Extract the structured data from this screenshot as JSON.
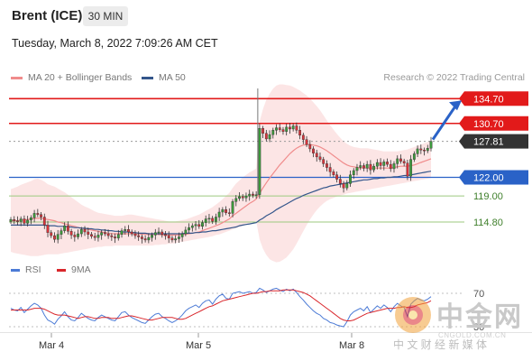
{
  "header": {
    "symbol": "Brent (ICE)",
    "interval": "30 MIN",
    "datetime": "Tuesday, March 8, 2022 7:09:26 AM CET"
  },
  "legend": {
    "ma20_label": "MA 20 + Bollinger Bands",
    "ma50_label": "MA 50",
    "credit": "Research © 2022 Trading Central"
  },
  "rsi_legend": {
    "rsi_label": "RSI",
    "ma9_label": "9MA"
  },
  "watermark": {
    "text": "中金网",
    "domain": "CNGOLD.COM.CN",
    "tagline": "中 文 财 经 新 媒 体"
  },
  "colors": {
    "ma20": "#f08c8c",
    "ma50": "#34568b",
    "resistance": "#e21a1a",
    "pivot": "#2a62c7",
    "support": "#9cc97f",
    "bollinger_fill": "#fbe0e0",
    "candle_up": "#3c9a3c",
    "candle_down": "#d8333a",
    "rsi": "#4c7bd6",
    "rsi_ma": "#d9262b",
    "current_price_bg": "#333333"
  },
  "chart_data": [
    {
      "type": "candlestick",
      "title": "Brent (ICE)",
      "interval": "30 MIN",
      "x_ticks": [
        "Mar 4",
        "Mar 5",
        "Mar 8"
      ],
      "price_levels": [
        {
          "name": "resistance",
          "value": 134.7,
          "label": "134.70",
          "style": "red"
        },
        {
          "name": "resistance",
          "value": 130.7,
          "label": "130.70",
          "style": "red"
        },
        {
          "name": "current",
          "value": 127.81,
          "label": "127.81",
          "style": "dark"
        },
        {
          "name": "pivot",
          "value": 122.0,
          "label": "122.00",
          "style": "blue"
        },
        {
          "name": "support",
          "value": 119.0,
          "label": "119.00",
          "style": "green"
        },
        {
          "name": "support",
          "value": 114.8,
          "label": "114.80",
          "style": "green"
        }
      ],
      "ylim": [
        106,
        140
      ],
      "series": [
        {
          "name": "MA 20 + Bollinger Bands"
        },
        {
          "name": "MA 50"
        }
      ],
      "close": [
        115.2,
        115.0,
        114.9,
        115.3,
        114.6,
        115.1,
        115.5,
        116.2,
        116.0,
        115.6,
        114.3,
        113.1,
        112.6,
        112.0,
        112.8,
        113.4,
        114.2,
        113.3,
        112.7,
        112.4,
        112.9,
        113.6,
        113.2,
        112.8,
        112.5,
        112.3,
        112.7,
        113.1,
        112.9,
        112.6,
        112.4,
        112.2,
        112.8,
        113.4,
        113.6,
        113.2,
        112.9,
        112.6,
        112.4,
        112.1,
        111.9,
        112.3,
        112.7,
        113.1,
        113.2,
        112.8,
        112.6,
        112.2,
        111.9,
        112.1,
        112.4,
        112.9,
        113.5,
        113.9,
        114.2,
        114.4,
        114.1,
        114.7,
        115.3,
        115.4,
        114.9,
        115.6,
        116.4,
        116.8,
        116.3,
        116.2,
        118.1,
        118.6,
        118.9,
        118.7,
        119.0,
        119.3,
        119.1,
        119.2,
        129.9,
        129.1,
        128.2,
        128.9,
        129.6,
        130.0,
        129.7,
        129.4,
        130.1,
        129.8,
        130.3,
        129.6,
        128.8,
        128.1,
        127.3,
        126.6,
        125.9,
        125.3,
        124.9,
        124.2,
        123.6,
        122.9,
        122.4,
        121.7,
        121.0,
        120.3,
        121.0,
        122.4,
        123.1,
        123.6,
        123.9,
        123.5,
        124.1,
        123.2,
        123.8,
        124.4,
        123.9,
        124.5,
        124.1,
        123.4,
        124.2,
        125.0,
        124.6,
        124.3,
        122.2,
        124.9,
        125.8,
        126.6,
        126.4,
        126.3,
        126.7,
        127.81
      ],
      "bb_upper": [
        120.1,
        120.3,
        120.5,
        120.8,
        121.0,
        121.2,
        121.4,
        121.7,
        121.8,
        121.6,
        121.3,
        120.9,
        120.7,
        120.5,
        120.2,
        119.9,
        119.6,
        119.2,
        118.8,
        118.4,
        118.0,
        117.6,
        117.3,
        117.1,
        116.8,
        116.5,
        116.3,
        116.2,
        116.1,
        116.0,
        115.9,
        115.8,
        115.8,
        115.8,
        115.9,
        116.0,
        116.0,
        115.9,
        115.8,
        115.7,
        115.6,
        115.5,
        115.4,
        115.3,
        115.2,
        115.1,
        115.0,
        114.9,
        114.9,
        114.9,
        115.0,
        115.1,
        115.2,
        115.4,
        115.6,
        115.8,
        116.0,
        116.3,
        116.6,
        116.9,
        117.2,
        117.6,
        118.0,
        118.5,
        119.0,
        119.5,
        120.3,
        121.0,
        121.5,
        122.0,
        122.4,
        122.8,
        123.1,
        123.4,
        131.0,
        133.0,
        134.5,
        135.5,
        136.3,
        136.8,
        137.0,
        137.0,
        136.9,
        136.8,
        136.6,
        136.3,
        136.0,
        135.6,
        135.2,
        134.7,
        134.1,
        133.5,
        132.8,
        132.0,
        131.2,
        130.4,
        129.7,
        129.0,
        128.4,
        127.8,
        127.4,
        127.1,
        126.9,
        126.8,
        126.7,
        126.7,
        126.7,
        126.6,
        126.5,
        126.4,
        126.3,
        126.2,
        126.2,
        126.2,
        126.2,
        126.2,
        126.3,
        126.4,
        126.5,
        126.7,
        126.9,
        127.1,
        127.3,
        127.5,
        127.7,
        127.9
      ],
      "bb_lower": [
        110.0,
        109.8,
        109.7,
        109.6,
        109.5,
        109.4,
        109.3,
        109.3,
        109.3,
        109.4,
        109.5,
        109.6,
        109.6,
        109.6,
        109.6,
        109.7,
        109.8,
        109.9,
        110.0,
        110.1,
        110.2,
        110.3,
        110.4,
        110.5,
        110.6,
        110.7,
        110.8,
        110.8,
        110.9,
        110.9,
        110.9,
        111.0,
        111.0,
        111.0,
        111.0,
        111.0,
        111.0,
        111.0,
        111.0,
        111.0,
        111.0,
        111.0,
        111.0,
        111.1,
        111.1,
        111.2,
        111.2,
        111.3,
        111.3,
        111.4,
        111.5,
        111.6,
        111.7,
        111.8,
        111.9,
        112.0,
        112.1,
        112.2,
        112.3,
        112.4,
        112.5,
        112.7,
        112.8,
        113.0,
        113.2,
        113.4,
        113.6,
        113.8,
        114.0,
        114.2,
        114.4,
        114.6,
        114.8,
        115.0,
        112.0,
        110.5,
        109.5,
        108.8,
        108.5,
        108.3,
        108.4,
        108.7,
        109.1,
        109.7,
        110.4,
        111.3,
        112.3,
        113.3,
        114.3,
        115.2,
        116.0,
        116.7,
        117.3,
        117.8,
        118.2,
        118.5,
        118.7,
        118.9,
        119.1,
        119.2,
        119.4,
        119.5,
        119.6,
        119.7,
        119.8,
        119.9,
        120.0,
        120.1,
        120.2,
        120.3,
        120.4,
        120.5,
        120.6,
        120.7,
        120.8,
        120.9,
        121.0,
        121.1,
        121.2,
        121.3,
        121.4,
        121.5,
        121.6,
        121.7,
        121.8,
        121.9
      ],
      "ma20": [
        115.0,
        115.0,
        115.0,
        115.1,
        115.1,
        115.2,
        115.3,
        115.4,
        115.4,
        115.4,
        115.3,
        115.2,
        115.1,
        115.0,
        114.8,
        114.7,
        114.5,
        114.4,
        114.2,
        114.1,
        113.9,
        113.8,
        113.7,
        113.6,
        113.5,
        113.4,
        113.3,
        113.2,
        113.1,
        113.0,
        112.9,
        112.9,
        112.9,
        112.9,
        112.9,
        112.9,
        112.9,
        112.9,
        112.8,
        112.8,
        112.8,
        112.8,
        112.8,
        112.8,
        112.8,
        112.7,
        112.7,
        112.7,
        112.7,
        112.7,
        112.7,
        112.8,
        112.8,
        112.9,
        113.0,
        113.1,
        113.2,
        113.4,
        113.6,
        113.8,
        114.0,
        114.2,
        114.4,
        114.7,
        115.0,
        115.3,
        115.8,
        116.2,
        116.6,
        117.0,
        117.4,
        117.8,
        118.1,
        118.5,
        119.4,
        120.3,
        121.1,
        121.9,
        122.6,
        123.3,
        124.0,
        124.6,
        125.2,
        125.8,
        126.3,
        126.7,
        127.0,
        127.2,
        127.3,
        127.3,
        127.2,
        127.1,
        126.9,
        126.6,
        126.3,
        125.9,
        125.5,
        125.1,
        124.7,
        124.3,
        124.0,
        123.8,
        123.7,
        123.6,
        123.5,
        123.5,
        123.5,
        123.5,
        123.5,
        123.5,
        123.5,
        123.5,
        123.5,
        123.5,
        123.6,
        123.7,
        123.8,
        123.8,
        123.8,
        123.9,
        124.0,
        124.2,
        124.4,
        124.6,
        124.8,
        125.0
      ],
      "ma50": [
        114.3,
        114.3,
        114.3,
        114.3,
        114.3,
        114.3,
        114.3,
        114.3,
        114.3,
        114.3,
        114.3,
        114.2,
        114.2,
        114.2,
        114.1,
        114.1,
        114.1,
        114.0,
        114.0,
        113.9,
        113.9,
        113.8,
        113.8,
        113.7,
        113.7,
        113.6,
        113.6,
        113.5,
        113.5,
        113.4,
        113.4,
        113.3,
        113.3,
        113.2,
        113.2,
        113.2,
        113.1,
        113.1,
        113.0,
        113.0,
        113.0,
        112.9,
        112.9,
        112.9,
        112.9,
        112.9,
        112.9,
        112.9,
        112.9,
        112.9,
        112.9,
        112.9,
        113.0,
        113.0,
        113.0,
        113.1,
        113.1,
        113.2,
        113.2,
        113.3,
        113.4,
        113.4,
        113.5,
        113.6,
        113.7,
        113.8,
        113.9,
        114.0,
        114.2,
        114.3,
        114.4,
        114.5,
        114.6,
        114.7,
        115.1,
        115.4,
        115.8,
        116.1,
        116.4,
        116.8,
        117.1,
        117.4,
        117.7,
        118.0,
        118.3,
        118.6,
        118.8,
        119.1,
        119.3,
        119.5,
        119.7,
        119.9,
        120.1,
        120.3,
        120.4,
        120.6,
        120.7,
        120.8,
        120.9,
        121.0,
        121.1,
        121.2,
        121.3,
        121.4,
        121.5,
        121.6,
        121.6,
        121.7,
        121.8,
        121.8,
        121.9,
        121.9,
        122.0,
        122.0,
        122.1,
        122.1,
        122.2,
        122.3,
        122.3,
        122.4,
        122.5,
        122.6,
        122.7,
        122.8,
        122.9,
        123.0
      ],
      "projection": {
        "from": 127.81,
        "to": 134.7
      }
    },
    {
      "type": "line",
      "title": "RSI",
      "ylim": [
        20,
        80
      ],
      "levels": [
        {
          "value": 70,
          "label": "70"
        },
        {
          "value": 30,
          "label": "30"
        }
      ],
      "series": [
        {
          "name": "RSI",
          "values": [
            52,
            50,
            49,
            53,
            47,
            51,
            55,
            58,
            56,
            52,
            44,
            38,
            36,
            33,
            39,
            43,
            48,
            42,
            38,
            37,
            41,
            46,
            43,
            40,
            38,
            37,
            41,
            44,
            42,
            40,
            38,
            37,
            42,
            47,
            48,
            44,
            41,
            39,
            37,
            35,
            34,
            38,
            42,
            45,
            46,
            42,
            40,
            37,
            35,
            37,
            40,
            44,
            49,
            52,
            54,
            56,
            53,
            58,
            61,
            62,
            57,
            63,
            67,
            69,
            64,
            63,
            70,
            71,
            72,
            70,
            71,
            72,
            70,
            71,
            76,
            74,
            71,
            73,
            75,
            76,
            74,
            72,
            75,
            73,
            75,
            71,
            66,
            62,
            57,
            53,
            49,
            46,
            44,
            40,
            38,
            35,
            34,
            32,
            31,
            30,
            36,
            44,
            48,
            50,
            52,
            49,
            54,
            47,
            51,
            55,
            52,
            56,
            53,
            48,
            54,
            58,
            55,
            53,
            42,
            57,
            61,
            64,
            62,
            61,
            63,
            66
          ]
        },
        {
          "name": "9MA",
          "values": [
            50,
            50,
            50,
            50,
            50,
            50,
            51,
            52,
            52,
            52,
            51,
            49,
            47,
            45,
            44,
            44,
            44,
            43,
            42,
            41,
            40,
            41,
            42,
            42,
            41,
            40,
            40,
            41,
            41,
            41,
            40,
            40,
            40,
            41,
            42,
            43,
            43,
            42,
            41,
            40,
            39,
            38,
            38,
            39,
            40,
            41,
            41,
            41,
            41,
            40,
            39,
            39,
            40,
            42,
            44,
            46,
            48,
            50,
            52,
            54,
            55,
            57,
            59,
            61,
            62,
            63,
            64,
            65,
            66,
            67,
            68,
            69,
            70,
            70,
            71,
            72,
            72,
            73,
            73,
            73,
            73,
            74,
            74,
            74,
            74,
            73,
            72,
            71,
            69,
            67,
            64,
            61,
            58,
            55,
            52,
            49,
            46,
            43,
            40,
            38,
            37,
            37,
            38,
            40,
            42,
            44,
            46,
            47,
            48,
            49,
            50,
            51,
            52,
            52,
            52,
            53,
            53,
            54,
            53,
            53,
            54,
            56,
            57,
            58,
            59,
            61
          ]
        }
      ]
    }
  ]
}
